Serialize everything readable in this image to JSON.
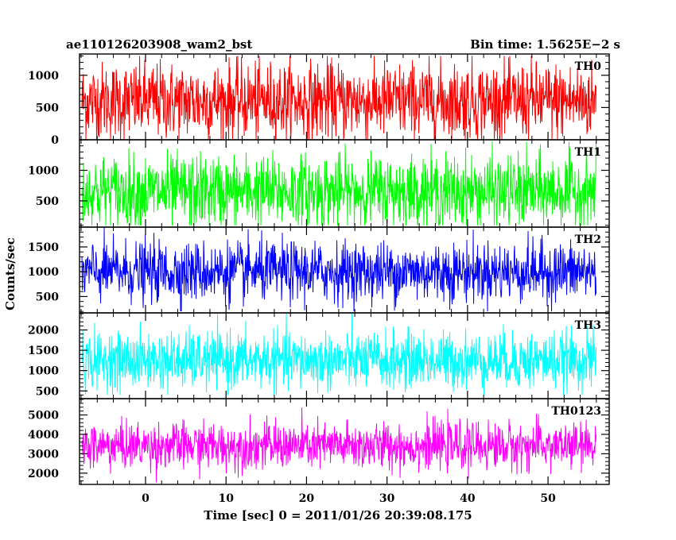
{
  "header": {
    "title": "ae110126203908_wam2_bst",
    "bin_time": "Bin time: 1.5625E−2 s"
  },
  "axes": {
    "xlabel": "Time [sec] 0 = 2011/01/26 20:39:08.175",
    "ylabel": "Counts/sec"
  },
  "chart_data": [
    {
      "type": "line",
      "series": [
        {
          "name": "TH0",
          "color": "#ff0000",
          "x_range": [
            -7.9,
            56.0
          ],
          "mean": 600,
          "min": 0,
          "max": 1300,
          "spread": 300
        }
      ],
      "xlim": [
        -8.2,
        57.6
      ],
      "ylim": [
        0,
        1330
      ],
      "yticks": [
        0,
        500,
        1000
      ],
      "x_tick_labels": []
    },
    {
      "type": "line",
      "series": [
        {
          "name": "TH1",
          "color": "#00ff00",
          "x_range": [
            -7.9,
            56.0
          ],
          "mean": 650,
          "min": 100,
          "max": 1500,
          "spread": 300
        }
      ],
      "xlim": [
        -8.2,
        57.6
      ],
      "ylim": [
        70,
        1500
      ],
      "yticks": [
        500,
        1000
      ],
      "x_tick_labels": []
    },
    {
      "type": "line",
      "series": [
        {
          "name": "TH2",
          "color": "#0000ff",
          "x_range": [
            -7.9,
            56.0
          ],
          "mean": 1000,
          "min": 200,
          "max": 1900,
          "spread": 300
        }
      ],
      "xlim": [
        -8.2,
        57.6
      ],
      "ylim": [
        170,
        1900
      ],
      "yticks": [
        500,
        1000,
        1500
      ],
      "x_tick_labels": []
    },
    {
      "type": "line",
      "series": [
        {
          "name": "TH3",
          "color": "#00ffff",
          "x_range": [
            -7.9,
            56.0
          ],
          "mean": 1250,
          "min": 400,
          "max": 2400,
          "spread": 350
        }
      ],
      "xlim": [
        -8.2,
        57.6
      ],
      "ylim": [
        310,
        2420
      ],
      "yticks": [
        500,
        1000,
        1500,
        2000
      ],
      "x_tick_labels": []
    },
    {
      "type": "line",
      "series": [
        {
          "name": "TH0123",
          "color": "#ff00ff",
          "x_range": [
            -7.9,
            56.0
          ],
          "mean": 3400,
          "min": 1500,
          "max": 5500,
          "spread": 600
        }
      ],
      "xlim": [
        -8.2,
        57.6
      ],
      "ylim": [
        1420,
        5840
      ],
      "yticks": [
        2000,
        3000,
        4000,
        5000
      ],
      "x_tick_labels": [
        "0",
        "10",
        "20",
        "30",
        "40",
        "50"
      ]
    }
  ]
}
